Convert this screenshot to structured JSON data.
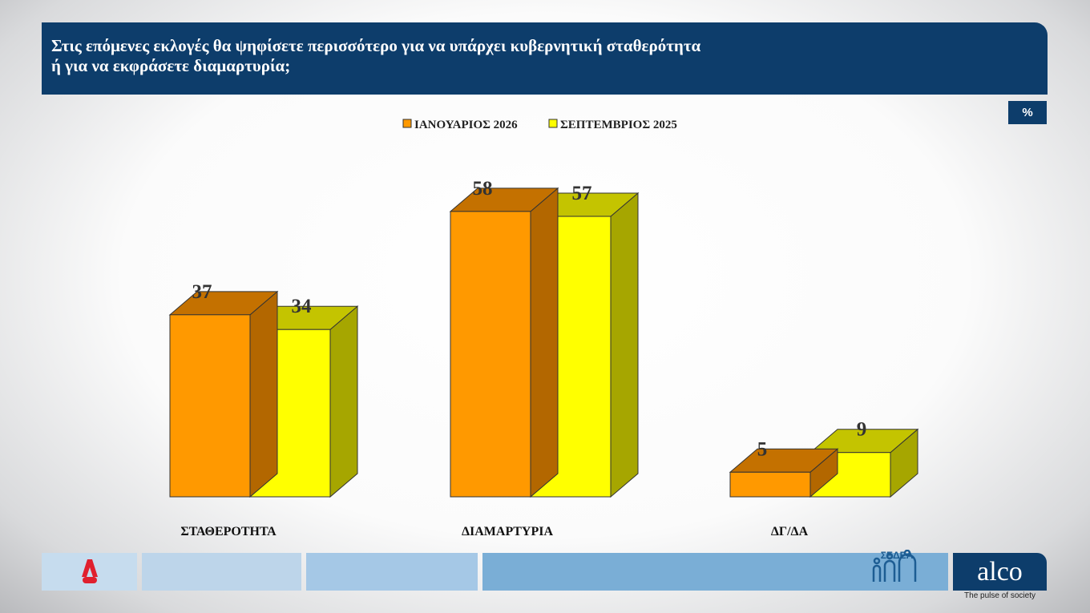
{
  "header": {
    "title_line1": "Στις επόμενες εκλογές θα ψηφίσετε περισσότερο για να υπάρχει κυβερνητική σταθερότητα",
    "title_line2": "ή για να εκφράσετε διαμαρτυρία;",
    "unit_badge": "%"
  },
  "chart_data": {
    "type": "bar",
    "style": "3d-grouped",
    "categories": [
      "ΣΤΑΘΕΡΟΤΗΤΑ",
      "ΔΙΑΜΑΡΤΥΡΙΑ",
      "ΔΓ/ΔΑ"
    ],
    "series": [
      {
        "name": "ΙΑΝΟΥΑΡΙΟΣ 2026",
        "values": [
          37,
          58,
          5
        ],
        "color": "#ff9900",
        "top_color": "#c47100",
        "side_color": "#b36700"
      },
      {
        "name": "ΣΕΠΤΕΜΒΡΙΟΣ 2025",
        "values": [
          34,
          57,
          9
        ],
        "color": "#ffff00",
        "top_color": "#c4c400",
        "side_color": "#a6a600"
      }
    ],
    "ylim": [
      0,
      60
    ],
    "grid": false,
    "legend": "top-center",
    "data_labels": true
  },
  "footer": {
    "sedea_label": "ΣΕΔΕΑ",
    "alco_logo": "alco",
    "alco_tagline": "The pulse of society",
    "alpha_logo": "ALPHA NEWS",
    "colors": {
      "box1": "#c6dcee",
      "box2": "#bdd5ea",
      "box3": "#a5c8e6",
      "box4": "#7aaed6"
    }
  }
}
